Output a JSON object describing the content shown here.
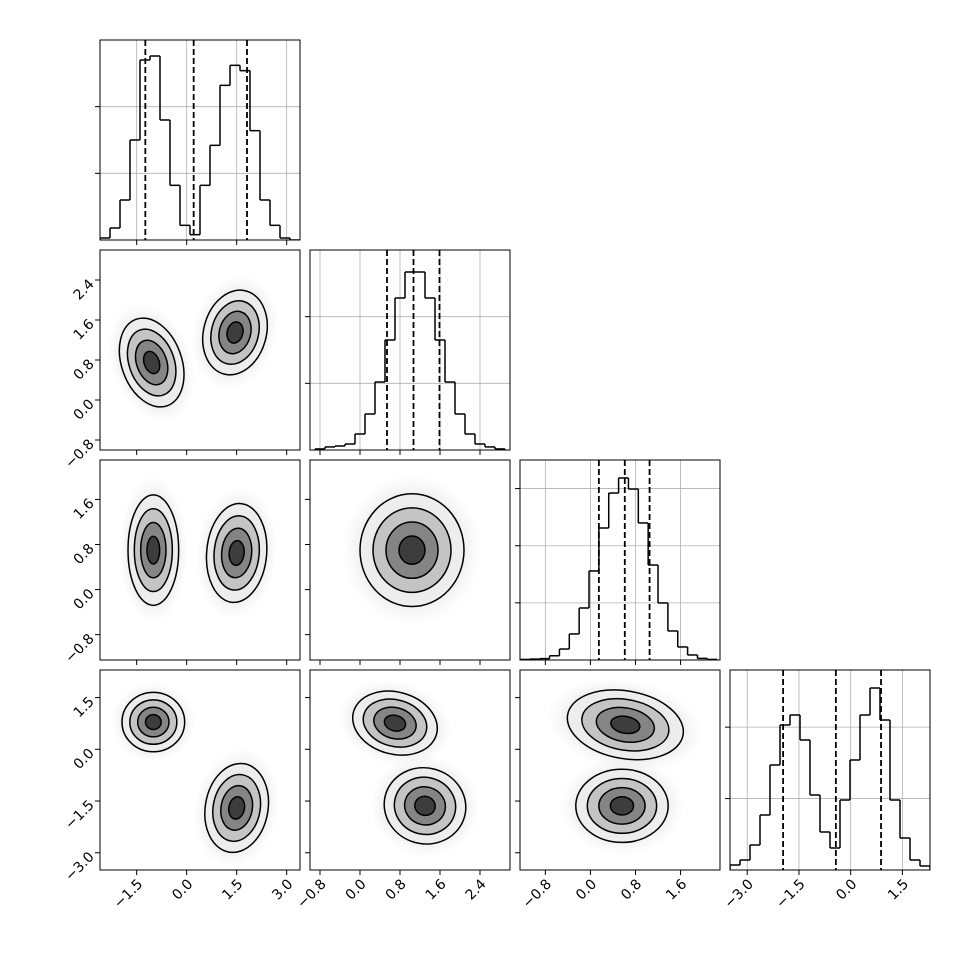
{
  "chart_data": {
    "type": "corner",
    "grid": true,
    "levels": [
      0.5,
      1,
      1.5,
      2
    ],
    "params": [
      {
        "range": [
          -2.6,
          3.4
        ],
        "ticks": [
          {
            "value": -1.5,
            "label": "−1.5"
          },
          {
            "value": 0,
            "label": "0.0"
          },
          1.5,
          {
            "value": 3,
            "label": "3.0"
          }
        ]
      },
      {
        "range": [
          -1.0,
          3.0
        ],
        "ticks": [
          {
            "value": -0.8,
            "label": "−0.8"
          },
          {
            "value": 0,
            "label": "0.0"
          },
          0.8,
          1.6,
          2.4
        ]
      },
      {
        "range": [
          -1.25,
          2.3
        ],
        "ticks": [
          {
            "value": -0.8,
            "label": "−0.8"
          },
          {
            "value": 0,
            "label": "0.0"
          },
          0.8,
          1.6
        ]
      },
      {
        "range": [
          -3.5,
          2.3
        ],
        "ticks": [
          {
            "value": -3,
            "label": "−3.0"
          },
          {
            "value": -1.5,
            "label": "−1.5"
          },
          {
            "value": 0,
            "label": "0.0"
          },
          1.5
        ]
      }
    ],
    "histograms": [
      {
        "bins": [
          -2.6,
          -2.3,
          -2.0,
          -1.7,
          -1.4,
          -1.1,
          -0.8,
          -0.5,
          -0.2,
          0.1,
          0.4,
          0.7,
          1.0,
          1.3,
          1.6,
          1.9,
          2.2,
          2.5,
          2.8,
          3.1,
          3.4
        ],
        "counts": [
          15,
          90,
          300,
          750,
          1350,
          1380,
          900,
          410,
          110,
          40,
          410,
          710,
          1160,
          1310,
          1270,
          820,
          300,
          110,
          15,
          0
        ],
        "ylim": [
          0,
          1500
        ],
        "yticks": [
          500,
          1000
        ],
        "quantiles": [
          -1.24,
          0.21,
          1.81
        ]
      },
      {
        "bins": [
          -0.9,
          -0.7,
          -0.5,
          -0.3,
          -0.1,
          0.1,
          0.3,
          0.5,
          0.7,
          0.9,
          1.1,
          1.3,
          1.5,
          1.7,
          1.9,
          2.1,
          2.3,
          2.5,
          2.7,
          2.9
        ],
        "counts": [
          8,
          23,
          30,
          45,
          120,
          270,
          510,
          825,
          1140,
          1335,
          1335,
          1140,
          825,
          510,
          270,
          120,
          45,
          23,
          8
        ],
        "ylim": [
          0,
          1500
        ],
        "yticks": [
          500,
          1000
        ],
        "quantiles": [
          0.54,
          1.07,
          1.59
        ]
      },
      {
        "bins": [
          -1.25,
          -1.075,
          -0.9,
          -0.725,
          -0.55,
          -0.375,
          -0.2,
          -0.025,
          0.15,
          0.325,
          0.5,
          0.675,
          0.85,
          1.025,
          1.2,
          1.375,
          1.55,
          1.725,
          1.9,
          2.075,
          2.25
        ],
        "counts": [
          5,
          8,
          12,
          37,
          96,
          228,
          455,
          779,
          1155,
          1461,
          1593,
          1496,
          1199,
          831,
          499,
          254,
          114,
          44,
          14,
          5
        ],
        "ylim": [
          0,
          1750
        ],
        "yticks": [
          500,
          1000,
          1500
        ],
        "quantiles": [
          0.15,
          0.61,
          1.05
        ]
      },
      {
        "bins": [
          -3.5,
          -3.21,
          -2.92,
          -2.63,
          -2.34,
          -2.05,
          -1.76,
          -1.47,
          -1.18,
          -0.89,
          -0.6,
          -0.31,
          -0.02,
          0.27,
          0.56,
          0.85,
          1.14,
          1.43,
          1.72,
          2.01,
          2.3
        ],
        "counts": [
          35,
          70,
          175,
          385,
          735,
          1015,
          1085,
          910,
          525,
          266,
          154,
          490,
          770,
          1085,
          1274,
          1050,
          490,
          224,
          70,
          28
        ],
        "ylim": [
          0,
          1400
        ],
        "yticks": [
          500,
          1000
        ],
        "quantiles": [
          -1.96,
          -0.43,
          0.88
        ]
      }
    ],
    "pairs": [
      {
        "blobs": [
          {
            "center": [
              -1.05,
              0.75
            ],
            "spread": [
              0.45,
              0.46
            ],
            "tilt": -20
          },
          {
            "center": [
              1.45,
              1.35
            ],
            "spread": [
              0.47,
              0.43
            ],
            "tilt": 15
          }
        ]
      },
      {
        "blobs": [
          {
            "center": [
              -1.0,
              0.7
            ],
            "spread": [
              0.38,
              0.49
            ],
            "tilt": 0
          },
          {
            "center": [
              1.5,
              0.65
            ],
            "spread": [
              0.45,
              0.44
            ],
            "tilt": 5
          }
        ]
      },
      {
        "blobs": [
          {
            "center": [
              1.04,
              0.7
            ],
            "spread": [
              0.52,
              0.5
            ],
            "tilt": 0
          }
        ]
      },
      {
        "blobs": [
          {
            "center": [
              -1.0,
              0.79
            ],
            "spread": [
              0.47,
              0.43
            ],
            "tilt": 0
          },
          {
            "center": [
              1.5,
              -1.7
            ],
            "spread": [
              0.47,
              0.65
            ],
            "tilt": 10
          }
        ]
      },
      {
        "blobs": [
          {
            "center": [
              0.7,
              0.76
            ],
            "spread": [
              0.43,
              0.45
            ],
            "tilt": 15
          },
          {
            "center": [
              1.3,
              -1.64
            ],
            "spread": [
              0.41,
              0.55
            ],
            "tilt": 15
          }
        ]
      },
      {
        "blobs": [
          {
            "center": [
              0.62,
              0.71
            ],
            "spread": [
              0.52,
              0.49
            ],
            "tilt": 10
          },
          {
            "center": [
              0.56,
              -1.64
            ],
            "spread": [
              0.41,
              0.53
            ],
            "tilt": 0
          }
        ]
      }
    ]
  }
}
